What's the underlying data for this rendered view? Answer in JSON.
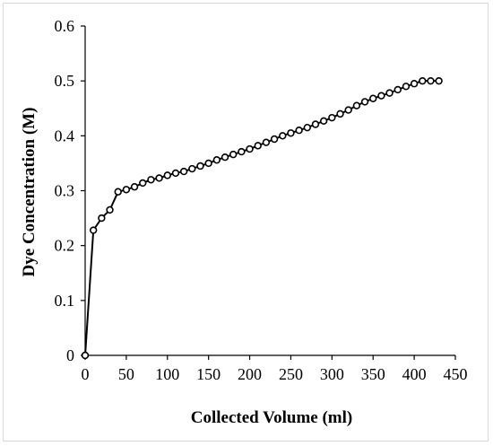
{
  "chart_data": {
    "type": "line",
    "title": "",
    "xlabel": "Collected Volume (ml)",
    "ylabel": "Dye Concentration (M)",
    "xlim": [
      0,
      450
    ],
    "ylim": [
      0,
      0.6
    ],
    "xticks": [
      0,
      50,
      100,
      150,
      200,
      250,
      300,
      350,
      400,
      450
    ],
    "xtick_labels": [
      "0",
      "50",
      "100",
      "150",
      "200",
      "250",
      "300",
      "350",
      "400",
      "450"
    ],
    "yticks": [
      0,
      0.1,
      0.2,
      0.3,
      0.4,
      0.5,
      0.6
    ],
    "ytick_labels": [
      "0",
      "0.1",
      "0.2",
      "0.3",
      "0.4",
      "0.5",
      "0.6"
    ],
    "grid": false,
    "legend": "none",
    "marker": "circle-open",
    "line_color": "#000000",
    "series": [
      {
        "x": [
          0,
          10,
          20,
          30,
          40,
          50,
          60,
          70,
          80,
          90,
          100,
          110,
          120,
          130,
          140,
          150,
          160,
          170,
          180,
          190,
          200,
          210,
          220,
          230,
          240,
          250,
          260,
          270,
          280,
          290,
          300,
          310,
          320,
          330,
          340,
          350,
          360,
          370,
          380,
          390,
          400,
          410,
          420,
          430
        ],
        "y": [
          0,
          0.228,
          0.25,
          0.265,
          0.298,
          0.302,
          0.307,
          0.314,
          0.32,
          0.323,
          0.328,
          0.332,
          0.335,
          0.34,
          0.345,
          0.35,
          0.356,
          0.361,
          0.366,
          0.371,
          0.376,
          0.382,
          0.388,
          0.394,
          0.4,
          0.405,
          0.41,
          0.415,
          0.421,
          0.427,
          0.433,
          0.44,
          0.447,
          0.455,
          0.462,
          0.468,
          0.473,
          0.478,
          0.484,
          0.49,
          0.495,
          0.5,
          0.5,
          0.5
        ]
      }
    ]
  }
}
